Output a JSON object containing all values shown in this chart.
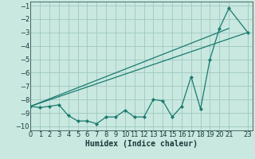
{
  "x": [
    0,
    1,
    2,
    3,
    4,
    5,
    6,
    7,
    8,
    9,
    10,
    11,
    12,
    13,
    14,
    15,
    16,
    17,
    18,
    19,
    20,
    21,
    23
  ],
  "line_main": [
    -8.5,
    -8.6,
    -8.5,
    -8.4,
    -9.2,
    -9.6,
    -9.6,
    -9.8,
    -9.3,
    -9.3,
    -8.8,
    -9.3,
    -9.3,
    -8.0,
    -8.1,
    -9.3,
    -8.5,
    -6.3,
    -8.7,
    -5.0,
    -2.7,
    -1.2,
    -3.0
  ],
  "line2_x": [
    0,
    23
  ],
  "line2_y": [
    -8.5,
    -3.0
  ],
  "line3_x": [
    0,
    21
  ],
  "line3_y": [
    -8.5,
    -2.7
  ],
  "line_color": "#1a7a6e",
  "bg_color": "#c8e8e0",
  "grid_color": "#a0c8c0",
  "xlabel": "Humidex (Indice chaleur)",
  "xlim": [
    0,
    23.5
  ],
  "ylim": [
    -10.3,
    -0.7
  ],
  "yticks": [
    -10,
    -9,
    -8,
    -7,
    -6,
    -5,
    -4,
    -3,
    -2,
    -1
  ],
  "xticks": [
    0,
    1,
    2,
    3,
    4,
    5,
    6,
    7,
    8,
    9,
    10,
    11,
    12,
    13,
    14,
    15,
    16,
    17,
    18,
    19,
    20,
    21,
    23
  ],
  "xlabel_fontsize": 7,
  "tick_fontsize": 6
}
